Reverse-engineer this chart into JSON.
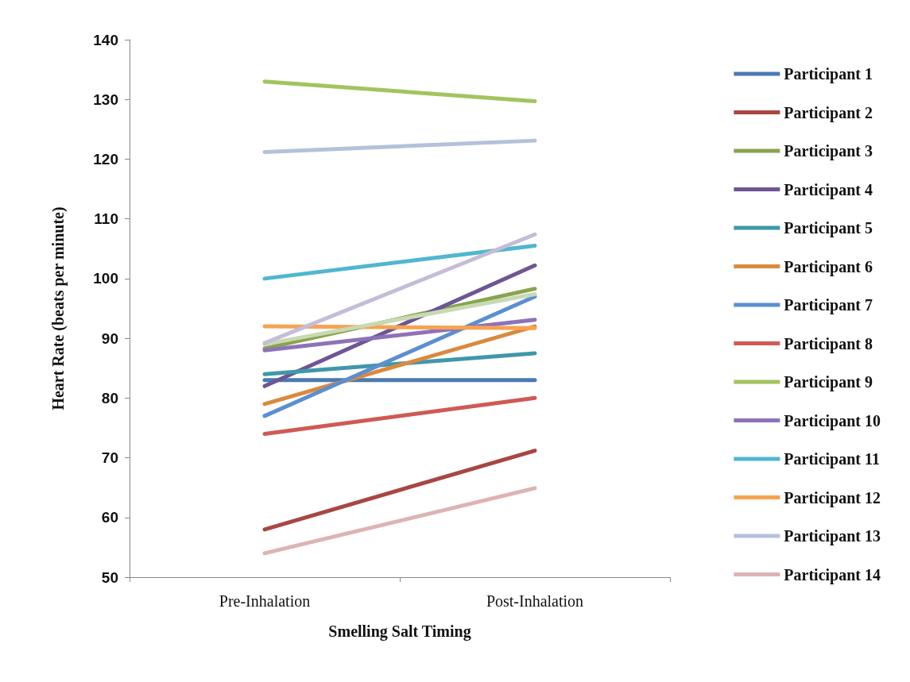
{
  "chart_data": {
    "type": "line",
    "xlabel": "Smelling Salt Timing",
    "ylabel": "Heart Rate (beats per minute)",
    "categories": [
      "Pre-Inhalation",
      "Post-Inhalation"
    ],
    "ylim": [
      50,
      140
    ],
    "yticks": [
      50,
      60,
      70,
      80,
      90,
      100,
      110,
      120,
      130,
      140
    ],
    "grid": false,
    "legend": "right",
    "marker": "none",
    "line_style": "solid",
    "series": [
      {
        "name": "Participant 1",
        "color": "#4a7ab0",
        "values": [
          83,
          83
        ]
      },
      {
        "name": "Participant 2",
        "color": "#a84742",
        "values": [
          58,
          71.2
        ]
      },
      {
        "name": "Participant 3",
        "color": "#88a44e",
        "values": [
          88.3,
          98.3
        ]
      },
      {
        "name": "Participant 4",
        "color": "#6e5594",
        "values": [
          82,
          102.2
        ]
      },
      {
        "name": "Participant 5",
        "color": "#3f97aa",
        "values": [
          84,
          87.5
        ]
      },
      {
        "name": "Participant 6",
        "color": "#d98a3e",
        "values": [
          79,
          92
        ]
      },
      {
        "name": "Participant 7",
        "color": "#5b8fd0",
        "values": [
          77,
          97
        ]
      },
      {
        "name": "Participant 8",
        "color": "#cf5a55",
        "values": [
          74,
          80
        ]
      },
      {
        "name": "Participant 9",
        "color": "#a2c45e",
        "values": [
          133,
          129.7
        ]
      },
      {
        "name": "Participant 10",
        "color": "#8e72b8",
        "values": [
          88,
          93.1
        ]
      },
      {
        "name": "Participant 11",
        "color": "#4fb7cf",
        "values": [
          100,
          105.5
        ]
      },
      {
        "name": "Participant 12",
        "color": "#f6a352",
        "values": [
          92,
          91.7
        ]
      },
      {
        "name": "Participant 13",
        "color": "#b3c2db",
        "values": [
          121.2,
          123.1
        ]
      },
      {
        "name": "Participant 14",
        "color": "#ddb3b3",
        "values": [
          54,
          64.9
        ]
      },
      {
        "color": "#c8d9b3",
        "values": [
          89,
          97.4
        ]
      },
      {
        "color": "#c5bcd7",
        "values": [
          89.2,
          107.4
        ]
      }
    ]
  }
}
